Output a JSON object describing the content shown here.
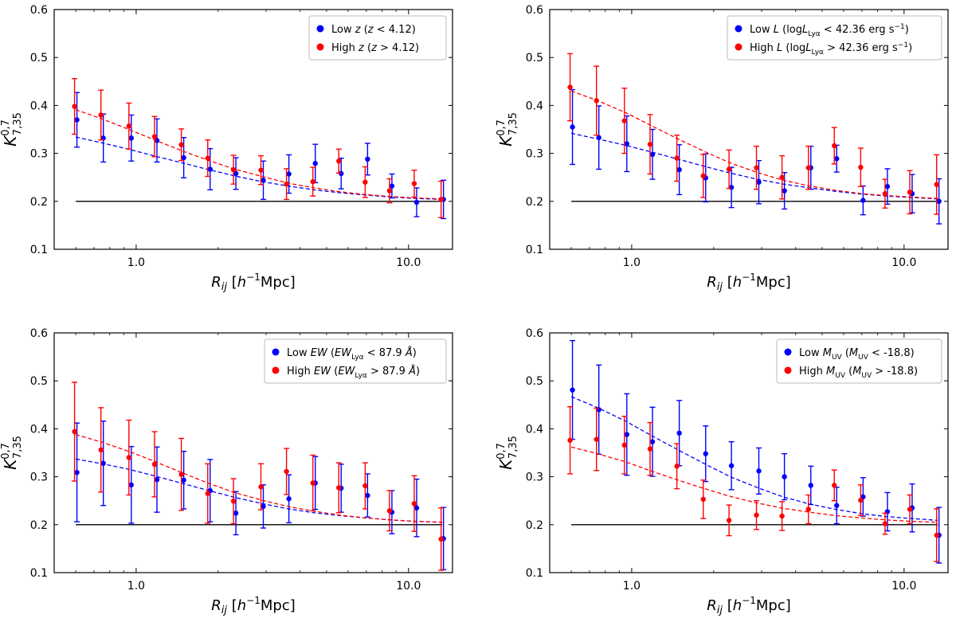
{
  "chart_data": [
    {
      "type": "scatter",
      "xlabel": "R_ij [h^-1 Mpc]",
      "ylabel": "K^{0,7}_{7,35}",
      "xscale": "log",
      "xlim": [
        0.5,
        14.5
      ],
      "ylim": [
        0.1,
        0.6
      ],
      "yticks": [
        "0.1",
        "0.2",
        "0.3",
        "0.4",
        "0.5",
        "0.6"
      ],
      "xticks": [
        "1.0",
        "10.0"
      ],
      "grid": false,
      "legend_position": "top-right",
      "reference_line": 0.2,
      "x": [
        0.6,
        0.75,
        0.95,
        1.18,
        1.48,
        1.85,
        2.3,
        2.9,
        3.6,
        4.5,
        5.6,
        7.0,
        8.6,
        10.6,
        13.3
      ],
      "legend": [
        {
          "parts": [
            [
              "n",
              "Low "
            ],
            [
              "i",
              "z"
            ],
            [
              "n",
              " ("
            ],
            [
              "i",
              "z"
            ],
            [
              "n",
              " < 4.12)"
            ]
          ]
        },
        {
          "parts": [
            [
              "n",
              "High "
            ],
            [
              "i",
              "z"
            ],
            [
              "n",
              " ("
            ],
            [
              "i",
              "z"
            ],
            [
              "n",
              " > 4.12)"
            ]
          ]
        }
      ],
      "series": [
        {
          "name": "Low z (z < 4.12)",
          "color": "#0000ff",
          "y": [
            0.37,
            0.332,
            0.332,
            0.327,
            0.291,
            0.267,
            0.258,
            0.244,
            0.257,
            0.279,
            0.258,
            0.288,
            0.232,
            0.198,
            0.204
          ],
          "err": [
            0.057,
            0.05,
            0.048,
            0.045,
            0.042,
            0.043,
            0.033,
            0.04,
            0.04,
            0.04,
            0.032,
            0.033,
            0.025,
            0.03,
            0.04
          ],
          "fit": [
            0.334,
            0.322,
            0.308,
            0.294,
            0.28,
            0.266,
            0.253,
            0.241,
            0.232,
            0.224,
            0.218,
            0.213,
            0.209,
            0.206,
            0.204
          ]
        },
        {
          "name": "High z (z > 4.12)",
          "color": "#ff0000",
          "y": [
            0.398,
            0.38,
            0.357,
            0.335,
            0.318,
            0.29,
            0.266,
            0.265,
            0.236,
            0.241,
            0.284,
            0.24,
            0.222,
            0.237,
            0.204
          ],
          "err": [
            0.058,
            0.052,
            0.048,
            0.042,
            0.033,
            0.038,
            0.03,
            0.03,
            0.032,
            0.03,
            0.025,
            0.032,
            0.025,
            0.028,
            0.038
          ],
          "fit": [
            0.391,
            0.372,
            0.349,
            0.327,
            0.305,
            0.285,
            0.267,
            0.252,
            0.238,
            0.228,
            0.22,
            0.214,
            0.21,
            0.207,
            0.205
          ]
        }
      ]
    },
    {
      "type": "scatter",
      "xlabel": "R_ij [h^-1 Mpc]",
      "ylabel": "K^{0,7}_{7,35}",
      "xscale": "log",
      "xlim": [
        0.5,
        14.5
      ],
      "ylim": [
        0.1,
        0.6
      ],
      "yticks": [
        "0.1",
        "0.2",
        "0.3",
        "0.4",
        "0.5",
        "0.6"
      ],
      "xticks": [
        "1.0",
        "10.0"
      ],
      "grid": false,
      "legend_position": "top-right",
      "reference_line": 0.2,
      "x": [
        0.6,
        0.75,
        0.95,
        1.18,
        1.48,
        1.85,
        2.3,
        2.9,
        3.6,
        4.5,
        5.6,
        7.0,
        8.6,
        10.6,
        13.3
      ],
      "legend": [
        {
          "parts": [
            [
              "n",
              "Low "
            ],
            [
              "i",
              "L"
            ],
            [
              "n",
              " (log"
            ],
            [
              "i",
              "L"
            ],
            [
              "s",
              "Lyα"
            ],
            [
              "n",
              " < 42.36 erg s"
            ],
            [
              "p",
              "−1"
            ],
            [
              "n",
              ")"
            ]
          ]
        },
        {
          "parts": [
            [
              "n",
              "High "
            ],
            [
              "i",
              "L"
            ],
            [
              "n",
              " (log"
            ],
            [
              "i",
              "L"
            ],
            [
              "s",
              "Lyα"
            ],
            [
              "n",
              " > 42.36 erg s"
            ],
            [
              "p",
              "−1"
            ],
            [
              "n",
              ")"
            ]
          ]
        }
      ],
      "series": [
        {
          "name": "Low L (logL_Lyα < 42.36 erg s^-1)",
          "color": "#0000ff",
          "y": [
            0.355,
            0.333,
            0.32,
            0.298,
            0.266,
            0.249,
            0.229,
            0.24,
            0.222,
            0.27,
            0.289,
            0.202,
            0.231,
            0.216,
            0.2
          ],
          "err": [
            0.078,
            0.066,
            0.058,
            0.052,
            0.052,
            0.05,
            0.042,
            0.045,
            0.038,
            0.045,
            0.028,
            0.03,
            0.037,
            0.04,
            0.047
          ],
          "fit": [
            0.342,
            0.33,
            0.317,
            0.303,
            0.288,
            0.273,
            0.259,
            0.246,
            0.236,
            0.228,
            0.221,
            0.215,
            0.211,
            0.208,
            0.205
          ]
        },
        {
          "name": "High L (logL_Lyα > 42.36 erg s^-1)",
          "color": "#ff0000",
          "y": [
            0.438,
            0.41,
            0.368,
            0.319,
            0.29,
            0.253,
            0.267,
            0.27,
            0.25,
            0.27,
            0.316,
            0.271,
            0.216,
            0.219,
            0.235
          ],
          "err": [
            0.07,
            0.072,
            0.068,
            0.062,
            0.048,
            0.045,
            0.04,
            0.045,
            0.045,
            0.045,
            0.038,
            0.04,
            0.03,
            0.045,
            0.062
          ],
          "fit": [
            0.43,
            0.41,
            0.385,
            0.358,
            0.33,
            0.304,
            0.28,
            0.26,
            0.244,
            0.232,
            0.223,
            0.216,
            0.212,
            0.209,
            0.206
          ]
        }
      ]
    },
    {
      "type": "scatter",
      "xlabel": "R_ij [h^-1 Mpc]",
      "ylabel": "K^{0,7}_{7,35}",
      "xscale": "log",
      "xlim": [
        0.5,
        14.5
      ],
      "ylim": [
        0.1,
        0.6
      ],
      "yticks": [
        "0.1",
        "0.2",
        "0.3",
        "0.4",
        "0.5",
        "0.6"
      ],
      "xticks": [
        "1.0",
        "10.0"
      ],
      "grid": false,
      "legend_position": "top-right",
      "reference_line": 0.2,
      "x": [
        0.6,
        0.75,
        0.95,
        1.18,
        1.48,
        1.85,
        2.3,
        2.9,
        3.6,
        4.5,
        5.6,
        7.0,
        8.6,
        10.6,
        13.3
      ],
      "legend": [
        {
          "parts": [
            [
              "n",
              "Low "
            ],
            [
              "i",
              "EW"
            ],
            [
              "n",
              " ("
            ],
            [
              "i",
              "EW"
            ],
            [
              "s",
              "Lyα"
            ],
            [
              "n",
              " < 87.9 "
            ],
            [
              "i",
              "Å"
            ],
            [
              "n",
              ")"
            ]
          ]
        },
        {
          "parts": [
            [
              "n",
              "High "
            ],
            [
              "i",
              "EW"
            ],
            [
              "n",
              " ("
            ],
            [
              "i",
              "EW"
            ],
            [
              "s",
              "Lyα"
            ],
            [
              "n",
              " > 87.9 "
            ],
            [
              "i",
              "Å"
            ],
            [
              "n",
              ")"
            ]
          ]
        }
      ],
      "series": [
        {
          "name": "Low EW (EW_Lyα < 87.9 Å)",
          "color": "#0000ff",
          "y": [
            0.309,
            0.328,
            0.283,
            0.294,
            0.293,
            0.271,
            0.224,
            0.238,
            0.254,
            0.287,
            0.276,
            0.261,
            0.226,
            0.235,
            0.171
          ],
          "err": [
            0.103,
            0.088,
            0.08,
            0.068,
            0.06,
            0.065,
            0.045,
            0.045,
            0.05,
            0.055,
            0.05,
            0.045,
            0.045,
            0.06,
            0.065
          ],
          "fit": [
            0.337,
            0.327,
            0.315,
            0.301,
            0.286,
            0.271,
            0.257,
            0.244,
            0.233,
            0.225,
            0.219,
            0.214,
            0.21,
            0.207,
            0.205
          ]
        },
        {
          "name": "High EW (EW_Lyα > 87.9 Å)",
          "color": "#ff0000",
          "y": [
            0.394,
            0.356,
            0.34,
            0.326,
            0.305,
            0.265,
            0.249,
            0.279,
            0.311,
            0.287,
            0.277,
            0.281,
            0.229,
            0.244,
            0.17
          ],
          "err": [
            0.103,
            0.088,
            0.078,
            0.068,
            0.075,
            0.062,
            0.047,
            0.048,
            0.048,
            0.058,
            0.052,
            0.048,
            0.042,
            0.058,
            0.065
          ],
          "fit": [
            0.388,
            0.372,
            0.352,
            0.331,
            0.308,
            0.286,
            0.267,
            0.251,
            0.238,
            0.228,
            0.22,
            0.214,
            0.21,
            0.207,
            0.205
          ]
        }
      ]
    },
    {
      "type": "scatter",
      "xlabel": "R_ij [h^-1 Mpc]",
      "ylabel": "K^{0,7}_{7,35}",
      "xscale": "log",
      "xlim": [
        0.5,
        14.5
      ],
      "ylim": [
        0.1,
        0.6
      ],
      "yticks": [
        "0.1",
        "0.2",
        "0.3",
        "0.4",
        "0.5",
        "0.6"
      ],
      "xticks": [
        "1.0",
        "10.0"
      ],
      "grid": false,
      "legend_position": "top-right",
      "reference_line": 0.2,
      "x": [
        0.6,
        0.75,
        0.95,
        1.18,
        1.48,
        1.85,
        2.3,
        2.9,
        3.6,
        4.5,
        5.6,
        7.0,
        8.6,
        10.6,
        13.3
      ],
      "legend": [
        {
          "parts": [
            [
              "n",
              "Low "
            ],
            [
              "i",
              "M"
            ],
            [
              "s",
              "UV"
            ],
            [
              "n",
              " ("
            ],
            [
              "i",
              "M"
            ],
            [
              "s",
              "UV"
            ],
            [
              "n",
              " < -18.8)"
            ]
          ]
        },
        {
          "parts": [
            [
              "n",
              "High "
            ],
            [
              "i",
              "M"
            ],
            [
              "s",
              "UV"
            ],
            [
              "n",
              " ("
            ],
            [
              "i",
              "M"
            ],
            [
              "s",
              "UV"
            ],
            [
              "n",
              " > -18.8)"
            ]
          ]
        }
      ],
      "series": [
        {
          "name": "Low M_UV (M_UV < -18.8)",
          "color": "#0000ff",
          "y": [
            0.481,
            0.44,
            0.388,
            0.373,
            0.391,
            0.348,
            0.323,
            0.312,
            0.3,
            0.282,
            0.24,
            0.258,
            0.227,
            0.235,
            0.178
          ],
          "err": [
            0.103,
            0.093,
            0.085,
            0.072,
            0.068,
            0.058,
            0.05,
            0.048,
            0.048,
            0.04,
            0.038,
            0.04,
            0.04,
            0.05,
            0.058
          ],
          "fit": [
            0.467,
            0.444,
            0.416,
            0.386,
            0.356,
            0.327,
            0.3,
            0.277,
            0.258,
            0.243,
            0.232,
            0.223,
            0.217,
            0.213,
            0.209
          ]
        },
        {
          "name": "High M_UV (M_UV > -18.8)",
          "color": "#ff0000",
          "y": [
            0.376,
            0.378,
            0.366,
            0.358,
            0.322,
            0.253,
            0.209,
            0.22,
            0.218,
            0.232,
            0.282,
            0.251,
            0.202,
            0.232,
            0.178
          ],
          "err": [
            0.07,
            0.065,
            0.06,
            0.055,
            0.047,
            0.04,
            0.032,
            0.03,
            0.03,
            0.03,
            0.032,
            0.032,
            0.022,
            0.03,
            0.055
          ],
          "fit": [
            0.362,
            0.348,
            0.331,
            0.312,
            0.293,
            0.275,
            0.259,
            0.245,
            0.234,
            0.226,
            0.219,
            0.214,
            0.21,
            0.207,
            0.205
          ]
        }
      ]
    }
  ]
}
